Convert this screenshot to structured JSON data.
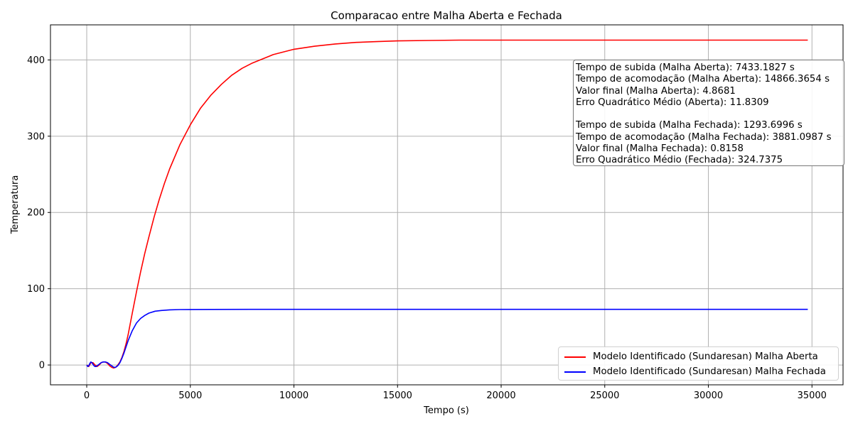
{
  "chart_data": {
    "type": "line",
    "title": "Comparacao entre Malha Aberta e Fechada",
    "xlabel": "Tempo (s)",
    "ylabel": "Temperatura",
    "xlim": [
      -1750,
      36500
    ],
    "ylim": [
      -26,
      446
    ],
    "xticks": [
      0,
      5000,
      10000,
      15000,
      20000,
      25000,
      30000,
      35000
    ],
    "yticks": [
      0,
      100,
      200,
      300,
      400
    ],
    "grid": true,
    "legend_position": "lower-right",
    "series": [
      {
        "name": "Modelo Identificado (Sundaresan) Malha Aberta",
        "color": "#ff0000",
        "points": [
          [
            0,
            0
          ],
          [
            100,
            -2
          ],
          [
            200,
            3
          ],
          [
            300,
            3
          ],
          [
            400,
            0
          ],
          [
            500,
            -2
          ],
          [
            600,
            0
          ],
          [
            700,
            3
          ],
          [
            800,
            4
          ],
          [
            900,
            4
          ],
          [
            1000,
            2
          ],
          [
            1100,
            -1
          ],
          [
            1200,
            -3
          ],
          [
            1300,
            -4
          ],
          [
            1400,
            -3
          ],
          [
            1500,
            0
          ],
          [
            1600,
            4
          ],
          [
            1700,
            10
          ],
          [
            1800,
            18
          ],
          [
            1900,
            28
          ],
          [
            2000,
            40
          ],
          [
            2200,
            68
          ],
          [
            2400,
            96
          ],
          [
            2600,
            122
          ],
          [
            2800,
            146
          ],
          [
            3000,
            168
          ],
          [
            3250,
            194
          ],
          [
            3500,
            217
          ],
          [
            3750,
            238
          ],
          [
            4000,
            257
          ],
          [
            4500,
            289
          ],
          [
            5000,
            315
          ],
          [
            5500,
            337
          ],
          [
            6000,
            354
          ],
          [
            6500,
            368
          ],
          [
            7000,
            380
          ],
          [
            7500,
            389
          ],
          [
            8000,
            396
          ],
          [
            9000,
            407
          ],
          [
            10000,
            414
          ],
          [
            11000,
            418
          ],
          [
            12000,
            421
          ],
          [
            13000,
            423
          ],
          [
            14000,
            424
          ],
          [
            15000,
            425
          ],
          [
            16500,
            425.5
          ],
          [
            18000,
            426
          ],
          [
            20000,
            426
          ],
          [
            22000,
            426
          ],
          [
            25000,
            426
          ],
          [
            28000,
            426
          ],
          [
            31000,
            426
          ],
          [
            34800,
            426
          ]
        ]
      },
      {
        "name": "Modelo Identificado (Sundaresan) Malha Fechada",
        "color": "#0000ff",
        "points": [
          [
            0,
            0
          ],
          [
            50,
            -2
          ],
          [
            100,
            -1
          ],
          [
            150,
            2
          ],
          [
            200,
            4
          ],
          [
            250,
            3
          ],
          [
            300,
            1
          ],
          [
            350,
            -1
          ],
          [
            400,
            -2
          ],
          [
            450,
            -2
          ],
          [
            500,
            -1
          ],
          [
            600,
            1
          ],
          [
            700,
            3
          ],
          [
            800,
            4
          ],
          [
            900,
            4
          ],
          [
            1000,
            3
          ],
          [
            1100,
            1
          ],
          [
            1200,
            -1
          ],
          [
            1300,
            -3
          ],
          [
            1400,
            -3
          ],
          [
            1500,
            -1
          ],
          [
            1600,
            3
          ],
          [
            1700,
            9
          ],
          [
            1800,
            16
          ],
          [
            1900,
            24
          ],
          [
            2000,
            32
          ],
          [
            2200,
            45
          ],
          [
            2400,
            55
          ],
          [
            2600,
            61
          ],
          [
            2800,
            65
          ],
          [
            3000,
            68
          ],
          [
            3300,
            70.5
          ],
          [
            3600,
            71.5
          ],
          [
            4000,
            72.3
          ],
          [
            4500,
            72.7
          ],
          [
            5000,
            72.8
          ],
          [
            6000,
            72.9
          ],
          [
            8000,
            73
          ],
          [
            12000,
            73
          ],
          [
            16000,
            73
          ],
          [
            20000,
            73
          ],
          [
            25000,
            73
          ],
          [
            30000,
            73
          ],
          [
            34800,
            73
          ]
        ]
      }
    ],
    "annotation": {
      "lines": [
        "Tempo de subida (Malha Aberta): 7433.1827 s",
        "Tempo de acomodação (Malha Aberta): 14866.3654 s",
        "Valor final (Malha Aberta): 4.8681",
        "Erro Quadrático Médio (Aberta): 11.8309",
        "",
        "Tempo de subida (Malha Fechada): 1293.6996 s",
        "Tempo de acomodação (Malha Fechada): 3881.0987 s",
        "Valor final (Malha Fechada): 0.8158",
        "Erro Quadrático Médio (Fechada): 324.7375"
      ],
      "position": "top-right"
    }
  }
}
